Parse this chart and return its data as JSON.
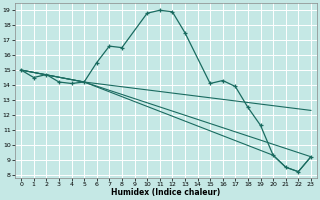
{
  "xlabel": "Humidex (Indice chaleur)",
  "bg_color": "#c5e8e5",
  "line_color": "#1a6b60",
  "grid_color": "#ffffff",
  "xlim": [
    -0.5,
    23.5
  ],
  "ylim": [
    7.8,
    19.5
  ],
  "yticks": [
    8,
    9,
    10,
    11,
    12,
    13,
    14,
    15,
    16,
    17,
    18,
    19
  ],
  "xticks": [
    0,
    1,
    2,
    3,
    4,
    5,
    6,
    7,
    8,
    9,
    10,
    11,
    12,
    13,
    14,
    15,
    16,
    17,
    18,
    19,
    20,
    21,
    22,
    23
  ],
  "main_x": [
    0,
    1,
    2,
    3,
    4,
    5,
    6,
    7,
    8,
    10,
    11,
    12,
    13,
    15,
    16,
    17,
    18,
    19,
    20,
    21,
    22,
    23
  ],
  "main_y": [
    15.0,
    14.5,
    14.7,
    14.2,
    14.1,
    14.2,
    15.5,
    16.6,
    16.5,
    18.8,
    19.0,
    18.9,
    17.5,
    14.1,
    14.3,
    13.9,
    12.5,
    11.3,
    9.3,
    8.5,
    8.2,
    9.2
  ],
  "line2_x": [
    0,
    5,
    20,
    21,
    22,
    23
  ],
  "line2_y": [
    15.0,
    14.2,
    9.3,
    8.5,
    8.2,
    9.2
  ],
  "line3_x": [
    0,
    5,
    23
  ],
  "line3_y": [
    15.0,
    14.2,
    12.3
  ],
  "line4_x": [
    0,
    5,
    23
  ],
  "line4_y": [
    15.0,
    14.2,
    9.2
  ]
}
